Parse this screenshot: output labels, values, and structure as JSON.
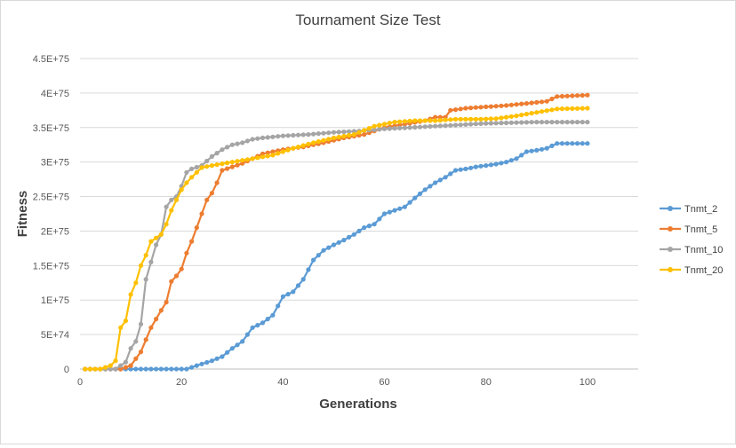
{
  "chart_data": {
    "type": "line",
    "title": "Tournament Size Test",
    "xlabel": "Generations",
    "ylabel": "Fitness",
    "xlim": [
      0,
      110
    ],
    "ylim": [
      0,
      4.5e+75
    ],
    "x_ticks": [
      "0",
      "20",
      "40",
      "60",
      "80",
      "100"
    ],
    "x_tick_values": [
      0,
      20,
      40,
      60,
      80,
      100
    ],
    "y_ticks": [
      "0",
      "5E+74",
      "1E+75",
      "1.5E+75",
      "2E+75",
      "2.5E+75",
      "3E+75",
      "3.5E+75",
      "4E+75",
      "4.5E+75"
    ],
    "y_tick_values": [
      0,
      5e+74,
      1e+75,
      1.5e+75,
      2e+75,
      2.5e+75,
      3e+75,
      3.5e+75,
      4e+75,
      4.5e+75
    ],
    "grid": true,
    "legend_position": "right",
    "series": [
      {
        "name": "Tnmt_2",
        "color": "#5b9bd5",
        "keypoints": [
          [
            1,
            0
          ],
          [
            21,
            0
          ],
          [
            23,
            5e+73
          ],
          [
            26,
            1.2e+74
          ],
          [
            28,
            1.8e+74
          ],
          [
            30,
            3e+74
          ],
          [
            32,
            4e+74
          ],
          [
            34,
            6e+74
          ],
          [
            36,
            6.7e+74
          ],
          [
            38,
            7.8e+74
          ],
          [
            40,
            1.05e+75
          ],
          [
            42,
            1.12e+75
          ],
          [
            44,
            1.3e+75
          ],
          [
            46,
            1.58e+75
          ],
          [
            48,
            1.72e+75
          ],
          [
            50,
            1.8e+75
          ],
          [
            52,
            1.87e+75
          ],
          [
            54,
            1.95e+75
          ],
          [
            56,
            2.05e+75
          ],
          [
            58,
            2.1e+75
          ],
          [
            60,
            2.25e+75
          ],
          [
            62,
            2.3e+75
          ],
          [
            64,
            2.35e+75
          ],
          [
            66,
            2.48e+75
          ],
          [
            68,
            2.6e+75
          ],
          [
            70,
            2.7e+75
          ],
          [
            72,
            2.78e+75
          ],
          [
            74,
            2.88e+75
          ],
          [
            76,
            2.9e+75
          ],
          [
            78,
            2.93e+75
          ],
          [
            80,
            2.95e+75
          ],
          [
            82,
            2.97e+75
          ],
          [
            84,
            3e+75
          ],
          [
            86,
            3.05e+75
          ],
          [
            88,
            3.15e+75
          ],
          [
            90,
            3.17e+75
          ],
          [
            92,
            3.2e+75
          ],
          [
            94,
            3.27e+75
          ],
          [
            100,
            3.27e+75
          ]
        ]
      },
      {
        "name": "Tnmt_5",
        "color": "#ed7d31",
        "keypoints": [
          [
            1,
            0
          ],
          [
            8,
            0
          ],
          [
            10,
            5e+73
          ],
          [
            12,
            2.5e+74
          ],
          [
            14,
            6e+74
          ],
          [
            16,
            8.5e+74
          ],
          [
            17,
            9.7e+74
          ],
          [
            18,
            1.27e+75
          ],
          [
            19,
            1.35e+75
          ],
          [
            20,
            1.45e+75
          ],
          [
            21,
            1.68e+75
          ],
          [
            22,
            1.85e+75
          ],
          [
            23,
            2.05e+75
          ],
          [
            24,
            2.25e+75
          ],
          [
            25,
            2.45e+75
          ],
          [
            26,
            2.55e+75
          ],
          [
            27,
            2.7e+75
          ],
          [
            28,
            2.88e+75
          ],
          [
            30,
            2.93e+75
          ],
          [
            32,
            2.98e+75
          ],
          [
            34,
            3.05e+75
          ],
          [
            36,
            3.12e+75
          ],
          [
            38,
            3.15e+75
          ],
          [
            40,
            3.18e+75
          ],
          [
            44,
            3.22e+75
          ],
          [
            48,
            3.28e+75
          ],
          [
            52,
            3.35e+75
          ],
          [
            56,
            3.4e+75
          ],
          [
            60,
            3.5e+75
          ],
          [
            64,
            3.55e+75
          ],
          [
            68,
            3.6e+75
          ],
          [
            70,
            3.65e+75
          ],
          [
            72,
            3.65e+75
          ],
          [
            73,
            3.75e+75
          ],
          [
            76,
            3.78e+75
          ],
          [
            80,
            3.8e+75
          ],
          [
            84,
            3.82e+75
          ],
          [
            88,
            3.85e+75
          ],
          [
            92,
            3.88e+75
          ],
          [
            94,
            3.95e+75
          ],
          [
            100,
            3.97e+75
          ]
        ]
      },
      {
        "name": "Tnmt_10",
        "color": "#a5a5a5",
        "keypoints": [
          [
            1,
            0
          ],
          [
            7,
            0
          ],
          [
            9,
            1e+74
          ],
          [
            10,
            3e+74
          ],
          [
            11,
            4e+74
          ],
          [
            12,
            6.5e+74
          ],
          [
            13,
            1.3e+75
          ],
          [
            14,
            1.55e+75
          ],
          [
            15,
            1.8e+75
          ],
          [
            16,
            1.95e+75
          ],
          [
            17,
            2.35e+75
          ],
          [
            18,
            2.45e+75
          ],
          [
            19,
            2.5e+75
          ],
          [
            20,
            2.65e+75
          ],
          [
            21,
            2.85e+75
          ],
          [
            22,
            2.9e+75
          ],
          [
            24,
            2.95e+75
          ],
          [
            26,
            3.08e+75
          ],
          [
            28,
            3.18e+75
          ],
          [
            30,
            3.25e+75
          ],
          [
            32,
            3.28e+75
          ],
          [
            34,
            3.33e+75
          ],
          [
            36,
            3.35e+75
          ],
          [
            40,
            3.38e+75
          ],
          [
            45,
            3.4e+75
          ],
          [
            50,
            3.43e+75
          ],
          [
            55,
            3.45e+75
          ],
          [
            60,
            3.48e+75
          ],
          [
            70,
            3.52e+75
          ],
          [
            80,
            3.56e+75
          ],
          [
            90,
            3.58e+75
          ],
          [
            100,
            3.58e+75
          ]
        ]
      },
      {
        "name": "Tnmt_20",
        "color": "#ffc000",
        "keypoints": [
          [
            1,
            0
          ],
          [
            4,
            0
          ],
          [
            6,
            5e+73
          ],
          [
            7,
            1.2e+74
          ],
          [
            8,
            6e+74
          ],
          [
            9,
            7e+74
          ],
          [
            10,
            1.08e+75
          ],
          [
            11,
            1.25e+75
          ],
          [
            12,
            1.5e+75
          ],
          [
            13,
            1.65e+75
          ],
          [
            14,
            1.85e+75
          ],
          [
            15,
            1.9e+75
          ],
          [
            16,
            1.95e+75
          ],
          [
            17,
            2.1e+75
          ],
          [
            18,
            2.3e+75
          ],
          [
            19,
            2.45e+75
          ],
          [
            20,
            2.6e+75
          ],
          [
            21,
            2.7e+75
          ],
          [
            22,
            2.78e+75
          ],
          [
            24,
            2.92e+75
          ],
          [
            26,
            2.95e+75
          ],
          [
            30,
            3e+75
          ],
          [
            34,
            3.05e+75
          ],
          [
            38,
            3.1e+75
          ],
          [
            42,
            3.2e+75
          ],
          [
            46,
            3.28e+75
          ],
          [
            50,
            3.35e+75
          ],
          [
            54,
            3.4e+75
          ],
          [
            58,
            3.52e+75
          ],
          [
            62,
            3.58e+75
          ],
          [
            66,
            3.6e+75
          ],
          [
            70,
            3.6e+75
          ],
          [
            74,
            3.62e+75
          ],
          [
            78,
            3.62e+75
          ],
          [
            82,
            3.63e+75
          ],
          [
            86,
            3.67e+75
          ],
          [
            90,
            3.72e+75
          ],
          [
            94,
            3.77e+75
          ],
          [
            100,
            3.78e+75
          ]
        ]
      }
    ]
  }
}
